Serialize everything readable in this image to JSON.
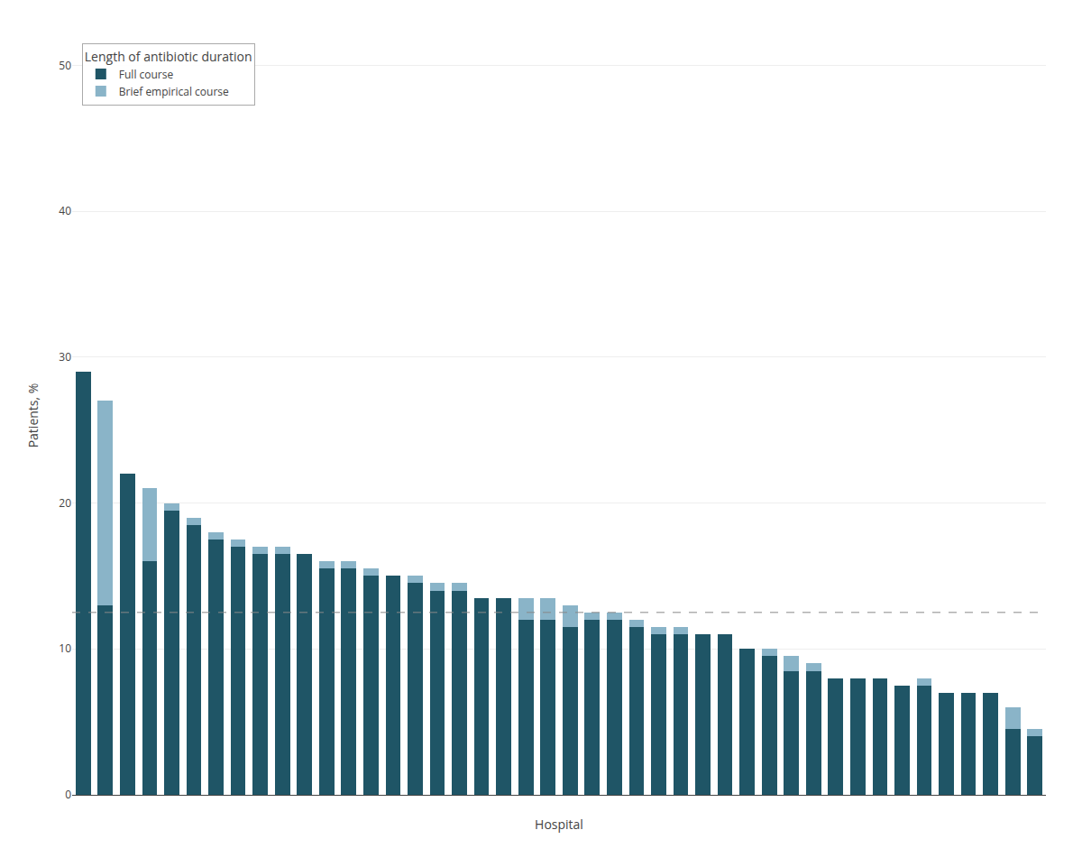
{
  "chart_data": {
    "type": "bar",
    "stacked": true,
    "xlabel": "Hospital",
    "ylabel": "Patients, %",
    "categories": [
      null,
      null,
      null,
      null,
      null,
      null,
      null,
      null,
      null,
      null,
      null,
      null,
      null,
      null,
      null,
      null,
      null,
      null,
      null,
      null,
      null,
      null,
      null,
      null,
      null,
      null,
      null,
      null,
      null,
      null,
      null,
      null,
      null,
      null,
      null,
      null,
      null,
      null,
      null,
      null,
      null,
      null,
      null,
      null
    ],
    "series": [
      {
        "name": "Full course",
        "color": "#1f5566",
        "values": [
          29.0,
          13.0,
          22.0,
          16.0,
          19.5,
          18.5,
          17.5,
          17.0,
          16.5,
          16.5,
          16.5,
          15.5,
          15.5,
          15.0,
          15.0,
          14.5,
          14.0,
          14.0,
          13.5,
          13.5,
          12.0,
          12.0,
          11.5,
          12.0,
          12.0,
          11.5,
          11.0,
          11.0,
          11.0,
          11.0,
          10.0,
          9.5,
          8.5,
          8.5,
          8.0,
          8.0,
          8.0,
          7.5,
          7.5,
          7.0,
          7.0,
          7.0,
          4.5,
          4.0
        ]
      },
      {
        "name": "Brief empirical course",
        "color": "#8ab4c8",
        "values": [
          0.0,
          14.0,
          0.0,
          5.0,
          0.5,
          0.5,
          0.5,
          0.5,
          0.5,
          0.5,
          0.0,
          0.5,
          0.5,
          0.5,
          0.0,
          0.5,
          0.5,
          0.5,
          0.0,
          0.0,
          1.5,
          1.5,
          1.5,
          0.5,
          0.5,
          0.5,
          0.5,
          0.5,
          0.0,
          0.0,
          0.0,
          0.5,
          1.0,
          0.5,
          0.0,
          0.0,
          0.0,
          0.0,
          0.5,
          0.0,
          0.0,
          0.0,
          1.5,
          0.5
        ]
      }
    ],
    "legend_title": "Length of antibiotic duration",
    "legend": "upper left",
    "lines": [
      {
        "value": 12.5,
        "color": "#888888",
        "line_style": "dashed"
      }
    ],
    "ylim": [
      0,
      52
    ],
    "yticks": [
      0,
      10,
      20,
      30,
      40,
      50
    ],
    "grid": true,
    "tick_labels": "y"
  }
}
